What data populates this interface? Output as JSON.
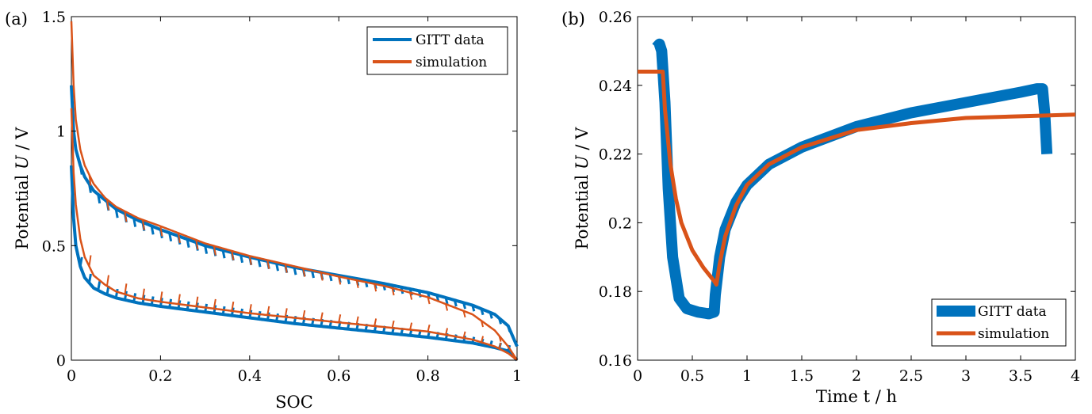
{
  "colors": {
    "gitt": "#0072BD",
    "sim": "#D95319",
    "axis": "#000000"
  },
  "chart_data": [
    {
      "type": "line",
      "panel_label": "(a)",
      "xlabel": "SOC",
      "ylabel": "Potential U / V",
      "ylabel_prefix": "Potential ",
      "ylabel_var": "U",
      "ylabel_suffix": " / V",
      "xlim": [
        0,
        1
      ],
      "ylim": [
        0,
        1.5
      ],
      "xticks": [
        0,
        0.2,
        0.4,
        0.6,
        0.8,
        1
      ],
      "xtick_labels": [
        "0",
        "0.2",
        "0.4",
        "0.6",
        "0.8",
        "1"
      ],
      "yticks": [
        0,
        0.5,
        1,
        1.5
      ],
      "ytick_labels": [
        "0",
        "0.5",
        "1",
        "1.5"
      ],
      "grid": false,
      "legend": "top-right",
      "series": [
        {
          "name": "GITT data",
          "curves": {
            "delithiation": {
              "x": [
                0,
                0.005,
                0.01,
                0.02,
                0.03,
                0.05,
                0.075,
                0.1,
                0.15,
                0.2,
                0.3,
                0.4,
                0.5,
                0.6,
                0.7,
                0.8,
                0.9,
                0.95,
                0.98,
                1
              ],
              "y": [
                1.2,
                1.0,
                0.92,
                0.85,
                0.8,
                0.74,
                0.7,
                0.66,
                0.61,
                0.57,
                0.5,
                0.45,
                0.405,
                0.37,
                0.335,
                0.295,
                0.24,
                0.2,
                0.15,
                0.06
              ]
            },
            "lithiation": {
              "x": [
                0,
                0.005,
                0.01,
                0.02,
                0.03,
                0.05,
                0.075,
                0.1,
                0.15,
                0.2,
                0.3,
                0.4,
                0.5,
                0.6,
                0.7,
                0.8,
                0.9,
                0.95,
                0.98,
                1
              ],
              "y": [
                0.85,
                0.62,
                0.5,
                0.41,
                0.36,
                0.315,
                0.29,
                0.272,
                0.25,
                0.235,
                0.21,
                0.185,
                0.16,
                0.14,
                0.12,
                0.1,
                0.075,
                0.055,
                0.04,
                0.0
              ]
            }
          }
        },
        {
          "name": "simulation",
          "curves": {
            "delithiation": {
              "x": [
                0,
                0.005,
                0.01,
                0.02,
                0.03,
                0.05,
                0.075,
                0.1,
                0.15,
                0.2,
                0.3,
                0.4,
                0.5,
                0.6,
                0.7,
                0.8,
                0.9,
                0.95,
                0.98,
                1
              ],
              "y": [
                1.48,
                1.2,
                1.05,
                0.92,
                0.85,
                0.77,
                0.71,
                0.67,
                0.62,
                0.585,
                0.51,
                0.455,
                0.41,
                0.365,
                0.325,
                0.275,
                0.2,
                0.13,
                0.06,
                0.0
              ]
            },
            "lithiation": {
              "x": [
                0,
                0.005,
                0.01,
                0.02,
                0.03,
                0.05,
                0.075,
                0.1,
                0.15,
                0.2,
                0.3,
                0.4,
                0.5,
                0.6,
                0.7,
                0.8,
                0.9,
                0.95,
                0.98,
                1
              ],
              "y": [
                1.1,
                0.82,
                0.68,
                0.53,
                0.45,
                0.37,
                0.33,
                0.3,
                0.27,
                0.255,
                0.23,
                0.205,
                0.185,
                0.165,
                0.145,
                0.125,
                0.09,
                0.06,
                0.03,
                0.0
              ]
            }
          }
        }
      ]
    },
    {
      "type": "line",
      "panel_label": "(b)",
      "xlabel": "Time t / h",
      "ylabel": "Potential U / V",
      "ylabel_prefix": "Potential ",
      "ylabel_var": "U",
      "ylabel_suffix": " / V",
      "xlim": [
        0,
        4
      ],
      "ylim": [
        0.16,
        0.26
      ],
      "xticks": [
        0,
        0.5,
        1,
        1.5,
        2,
        2.5,
        3,
        3.5,
        4
      ],
      "xtick_labels": [
        "0",
        "0.5",
        "1",
        "1.5",
        "2",
        "2.5",
        "3",
        "3.5",
        "4"
      ],
      "yticks": [
        0.16,
        0.18,
        0.2,
        0.22,
        0.24,
        0.26
      ],
      "ytick_labels": [
        "0.16",
        "0.18",
        "0.2",
        "0.22",
        "0.24",
        "0.26"
      ],
      "grid": false,
      "legend": "bottom-right",
      "series": [
        {
          "name": "GITT data",
          "x": [
            0.17,
            0.2,
            0.22,
            0.25,
            0.28,
            0.32,
            0.38,
            0.45,
            0.55,
            0.65,
            0.7,
            0.71,
            0.75,
            0.8,
            0.9,
            1.0,
            1.2,
            1.5,
            2.0,
            2.5,
            3.0,
            3.5,
            3.65,
            3.7,
            3.72,
            3.74
          ],
          "y": [
            0.251,
            0.252,
            0.25,
            0.235,
            0.21,
            0.19,
            0.178,
            0.175,
            0.174,
            0.1735,
            0.174,
            0.179,
            0.19,
            0.198,
            0.206,
            0.211,
            0.217,
            0.222,
            0.228,
            0.232,
            0.235,
            0.238,
            0.239,
            0.239,
            0.232,
            0.22
          ]
        },
        {
          "name": "simulation",
          "x": [
            0,
            0.05,
            0.1,
            0.15,
            0.2,
            0.23,
            0.25,
            0.3,
            0.35,
            0.4,
            0.5,
            0.6,
            0.7,
            0.72,
            0.75,
            0.8,
            0.9,
            1.0,
            1.2,
            1.5,
            2.0,
            2.5,
            3.0,
            3.5,
            4.0
          ],
          "y": [
            0.244,
            0.244,
            0.244,
            0.244,
            0.244,
            0.244,
            0.233,
            0.217,
            0.207,
            0.2,
            0.192,
            0.187,
            0.183,
            0.182,
            0.188,
            0.196,
            0.205,
            0.211,
            0.217,
            0.222,
            0.227,
            0.229,
            0.2305,
            0.231,
            0.2315
          ]
        }
      ]
    }
  ]
}
